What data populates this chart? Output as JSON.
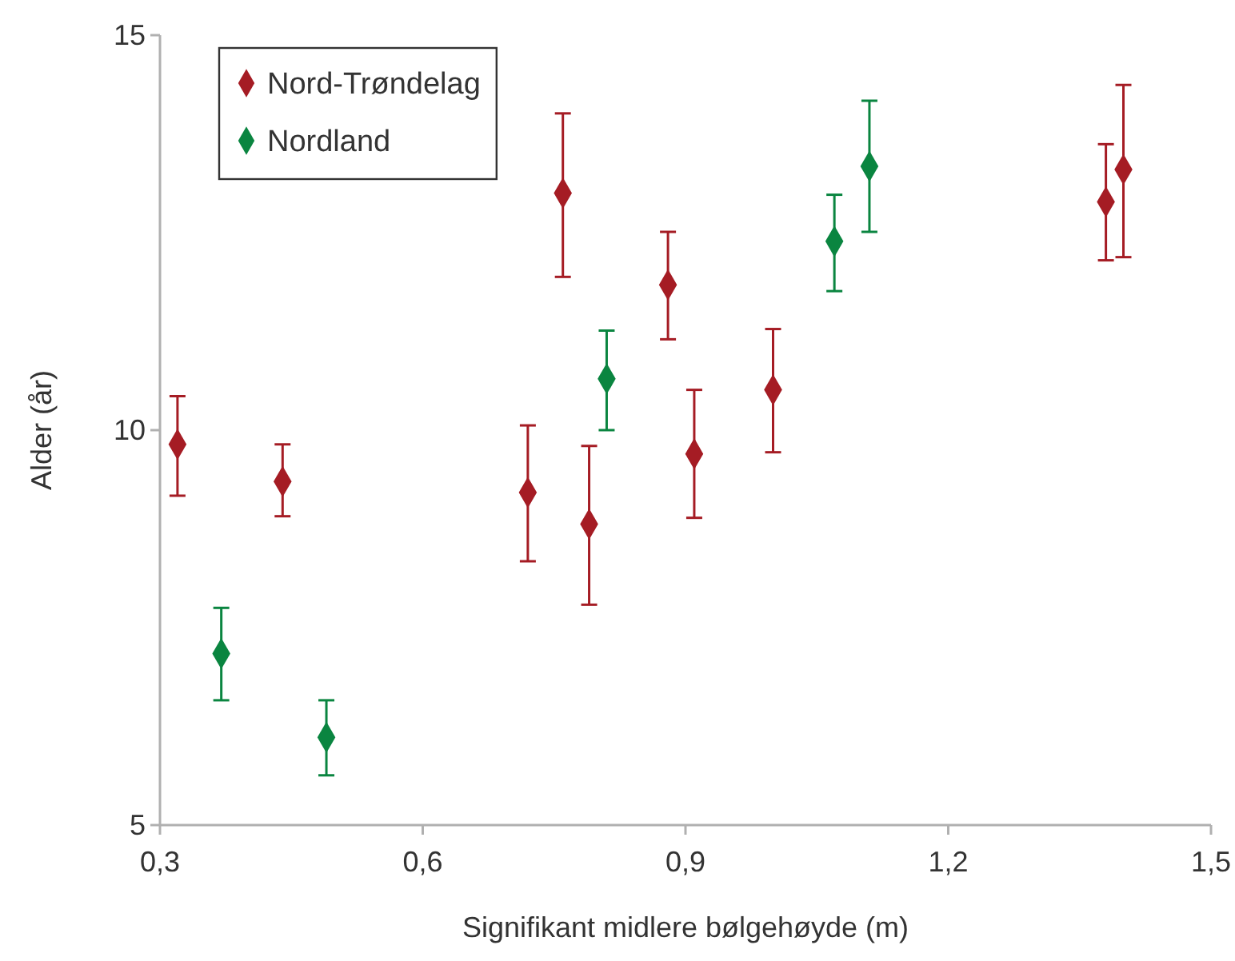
{
  "chart_data": {
    "type": "scatter",
    "xlabel": "Signifikant midlere bølgehøyde  (m)",
    "ylabel": "Alder  (år)",
    "xlim": [
      0.3,
      1.5
    ],
    "xticks": [
      {
        "value": 0.3,
        "label": "0,3"
      },
      {
        "value": 0.6,
        "label": "0,6"
      },
      {
        "value": 0.9,
        "label": "0,9"
      },
      {
        "value": 1.2,
        "label": "1,2"
      },
      {
        "value": 1.5,
        "label": "1,5"
      }
    ],
    "ylim": [
      5,
      15
    ],
    "yticks": [
      5,
      10,
      15
    ],
    "grid": false,
    "legend": "top left",
    "marker": "diamond",
    "series": [
      {
        "name": "Nord-Trøndelag",
        "color": "#a51c24",
        "x": [
          0.32,
          0.44,
          0.72,
          0.76,
          0.79,
          0.88,
          0.91,
          1.0,
          1.38,
          1.4
        ],
        "values": [
          9.82,
          9.35,
          9.21,
          13.0,
          8.81,
          11.84,
          9.7,
          10.51,
          12.89,
          13.3
        ],
        "errors": [
          [
            9.17,
            10.43
          ],
          [
            8.91,
            9.82
          ],
          [
            8.34,
            10.06
          ],
          [
            11.94,
            14.01
          ],
          [
            7.79,
            9.8
          ],
          [
            11.15,
            12.51
          ],
          [
            8.89,
            10.51
          ],
          [
            9.72,
            11.28
          ],
          [
            12.15,
            13.62
          ],
          [
            12.19,
            14.37
          ]
        ]
      },
      {
        "name": "Nordland",
        "color": "#0a8540",
        "x": [
          0.37,
          0.49,
          0.81,
          1.07,
          1.11
        ],
        "values": [
          7.17,
          6.11,
          10.65,
          12.39,
          13.34
        ],
        "errors": [
          [
            6.58,
            7.75
          ],
          [
            5.63,
            6.58
          ],
          [
            10.0,
            11.26
          ],
          [
            11.76,
            12.98
          ],
          [
            12.51,
            14.17
          ]
        ]
      }
    ]
  }
}
